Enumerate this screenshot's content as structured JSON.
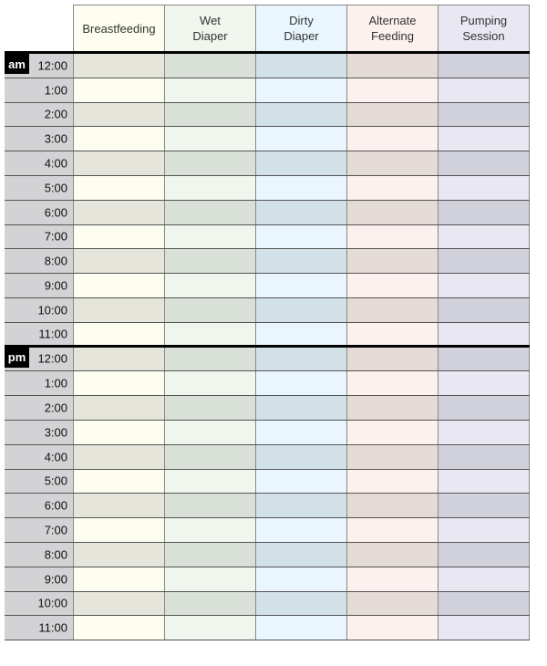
{
  "columns": [
    {
      "label": "Breastfeeding",
      "light": "#fdfdf0",
      "dark": "#e5e5dc"
    },
    {
      "label": "Wet\nDiaper",
      "light": "#f0f5ee",
      "dark": "#d9e0d8"
    },
    {
      "label": "Dirty\nDiaper",
      "light": "#e9f6fd",
      "dark": "#d1e1e7"
    },
    {
      "label": "Alternate\nFeeding",
      "light": "#fcf1ee",
      "dark": "#e5dbd6"
    },
    {
      "label": "Pumping\nSession",
      "light": "#e9e7f2",
      "dark": "#d1d1db"
    }
  ],
  "sections": [
    {
      "meridiem": "am",
      "times": [
        "12:00",
        "1:00",
        "2:00",
        "3:00",
        "4:00",
        "5:00",
        "6:00",
        "7:00",
        "8:00",
        "9:00",
        "10:00",
        "11:00"
      ]
    },
    {
      "meridiem": "pm",
      "times": [
        "12:00",
        "1:00",
        "2:00",
        "3:00",
        "4:00",
        "5:00",
        "6:00",
        "7:00",
        "8:00",
        "9:00",
        "10:00",
        "11:00"
      ]
    }
  ]
}
